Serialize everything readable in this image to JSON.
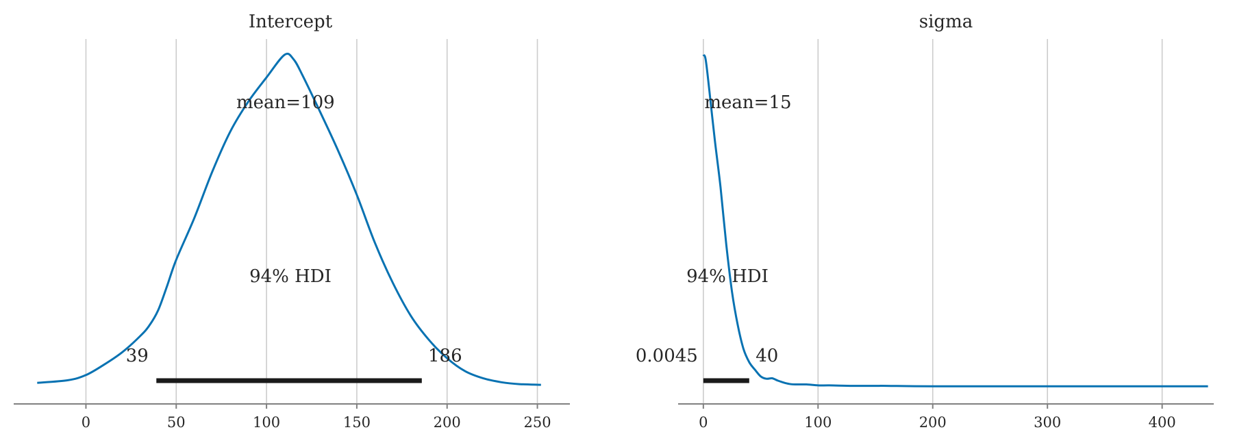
{
  "chart_data": [
    {
      "type": "line",
      "title": "Intercept",
      "xlim": [
        -40,
        268
      ],
      "xticks": [
        0,
        50,
        100,
        150,
        200,
        250
      ],
      "grid": true,
      "mean_label": "mean=109",
      "mean": 109,
      "hdi_label": "94% HDI",
      "hdi": [
        39,
        186
      ],
      "hdi_low_label": "39",
      "hdi_high_label": "186",
      "color": "#0872b2",
      "density": {
        "x": [
          -27,
          -10,
          0,
          10,
          20,
          30,
          35,
          40,
          45,
          50,
          60,
          70,
          80,
          90,
          100,
          110,
          115,
          120,
          130,
          140,
          150,
          160,
          170,
          180,
          190,
          200,
          210,
          220,
          230,
          240,
          252
        ],
        "y": [
          0.0004,
          0.0008,
          0.0016,
          0.0032,
          0.0051,
          0.0076,
          0.0092,
          0.0116,
          0.0154,
          0.0194,
          0.0258,
          0.033,
          0.0392,
          0.0438,
          0.0475,
          0.051,
          0.0503,
          0.0478,
          0.042,
          0.036,
          0.0294,
          0.022,
          0.0158,
          0.0107,
          0.007,
          0.0042,
          0.0022,
          0.0011,
          0.0005,
          0.0002,
          0.0001
        ]
      }
    },
    {
      "type": "line",
      "title": "sigma",
      "xlim": [
        -22,
        445
      ],
      "xticks": [
        0,
        100,
        200,
        300,
        400
      ],
      "grid": true,
      "mean_label": "mean=15",
      "mean": 15,
      "hdi_label": "94% HDI",
      "hdi": [
        0.0045,
        40
      ],
      "hdi_low_label": "0.0045",
      "hdi_high_label": "40",
      "color": "#0872b2",
      "density": {
        "x": [
          0,
          2,
          5,
          10,
          15,
          20,
          25,
          30,
          35,
          40,
          45,
          50,
          55,
          60,
          65,
          70,
          75,
          80,
          90,
          100,
          110,
          130,
          150,
          160,
          200,
          300,
          440
        ],
        "y": [
          0.07,
          0.069,
          0.063,
          0.052,
          0.042,
          0.03,
          0.02,
          0.013,
          0.008,
          0.0052,
          0.0036,
          0.0022,
          0.0017,
          0.0018,
          0.0013,
          0.0009,
          0.0006,
          0.0005,
          0.0005,
          0.0003,
          0.0003,
          0.0002,
          0.0002,
          0.0002,
          0.0001,
          0.0001,
          0.0001
        ]
      }
    }
  ]
}
